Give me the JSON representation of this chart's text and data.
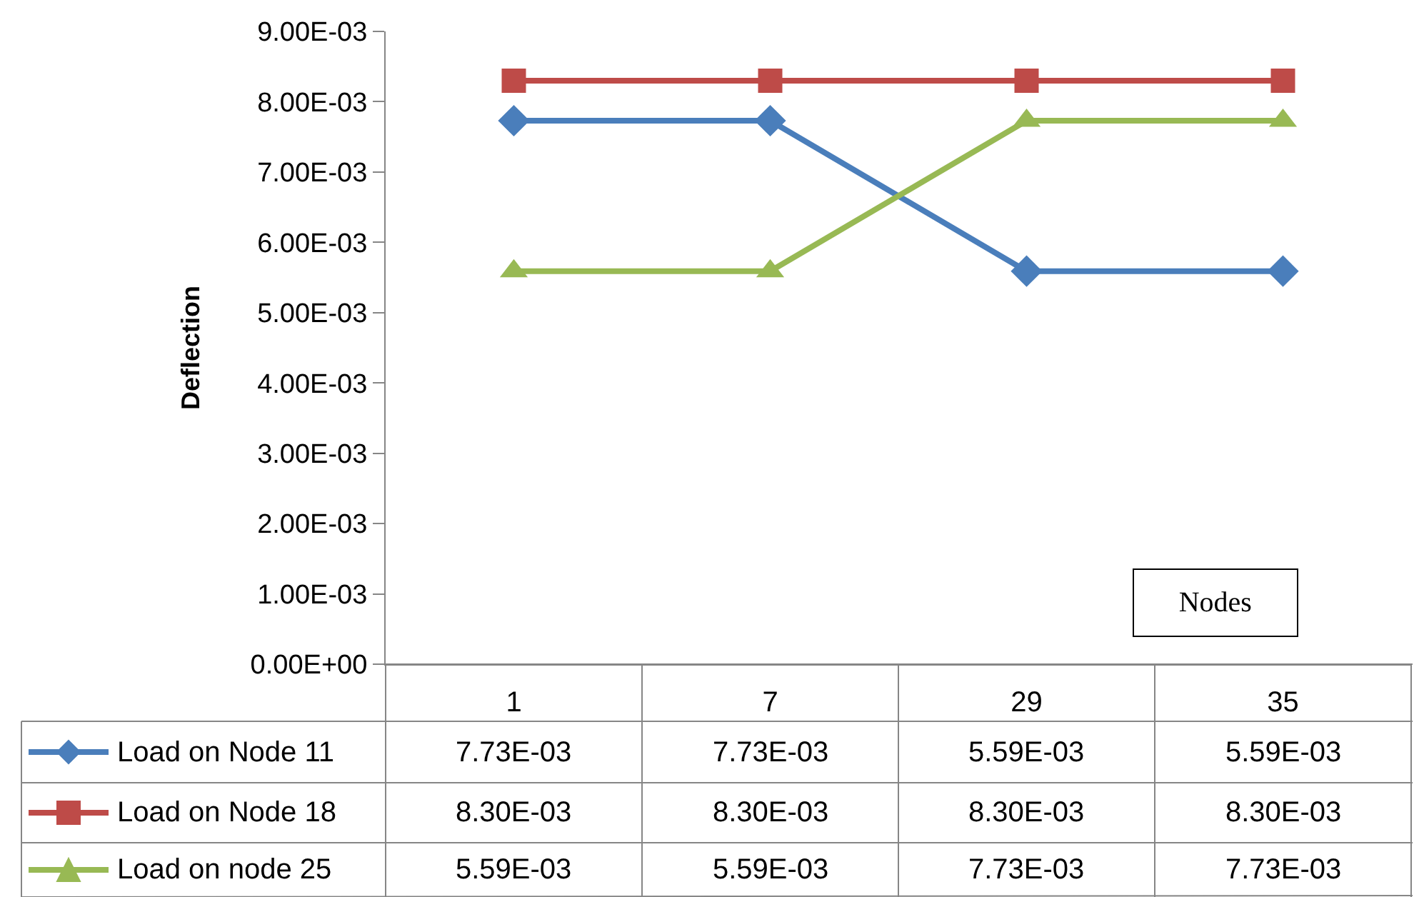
{
  "chart_data": {
    "type": "line",
    "ylabel": "Deflection",
    "xlabel": "Nodes",
    "categories": [
      "1",
      "7",
      "29",
      "35"
    ],
    "series": [
      {
        "name": "Load on Node 11",
        "color": "#4a7ebb",
        "marker": "diamond",
        "values": [
          0.00773,
          0.00773,
          0.00559,
          0.00559
        ],
        "value_labels": [
          "7.73E-03",
          "7.73E-03",
          "5.59E-03",
          "5.59E-03"
        ]
      },
      {
        "name": "Load on Node 18",
        "color": "#be4b48",
        "marker": "square",
        "values": [
          0.0083,
          0.0083,
          0.0083,
          0.0083
        ],
        "value_labels": [
          "8.30E-03",
          "8.30E-03",
          "8.30E-03",
          "8.30E-03"
        ]
      },
      {
        "name": "Load on node 25",
        "color": "#98b954",
        "marker": "triangle",
        "values": [
          0.00559,
          0.00559,
          0.00773,
          0.00773
        ],
        "value_labels": [
          "5.59E-03",
          "5.59E-03",
          "7.73E-03",
          "7.73E-03"
        ]
      }
    ],
    "ylim": [
      0,
      0.009
    ],
    "yticks": [
      {
        "value": 0,
        "label": "0.00E+00"
      },
      {
        "value": 0.001,
        "label": "1.00E-03"
      },
      {
        "value": 0.002,
        "label": "2.00E-03"
      },
      {
        "value": 0.003,
        "label": "3.00E-03"
      },
      {
        "value": 0.004,
        "label": "4.00E-03"
      },
      {
        "value": 0.005,
        "label": "5.00E-03"
      },
      {
        "value": 0.006,
        "label": "6.00E-03"
      },
      {
        "value": 0.007,
        "label": "7.00E-03"
      },
      {
        "value": 0.008,
        "label": "8.00E-03"
      },
      {
        "value": 0.009,
        "label": "9.00E-03"
      }
    ],
    "legend": "bottom",
    "line_style": "solid"
  }
}
